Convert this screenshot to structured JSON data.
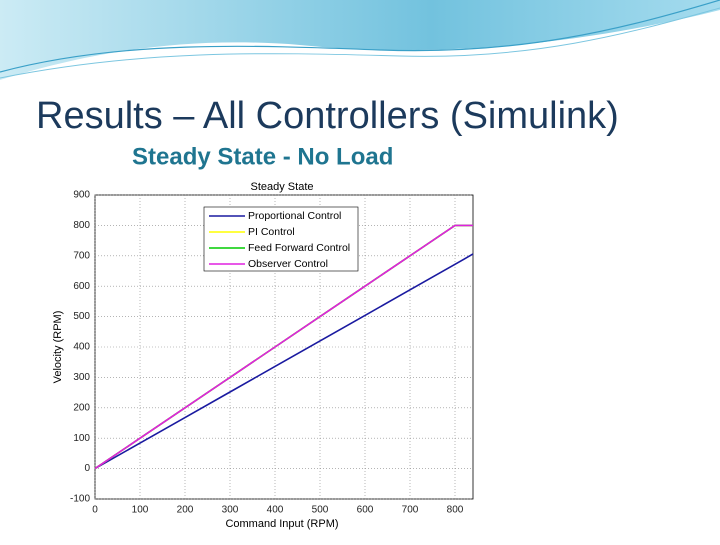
{
  "slide_title": "Results – All Controllers (Simulink)",
  "slide_subtitle": "Steady State - No Load",
  "chart_data": {
    "type": "line",
    "title": "Steady State",
    "x_label": "Command Input (RPM)",
    "y_label": "Velocity (RPM)",
    "x": [
      0,
      100,
      200,
      300,
      400,
      500,
      600,
      700,
      800,
      820,
      840
    ],
    "series": [
      {
        "name": "Proportional Control",
        "color": "#1a1aa0",
        "values": [
          0,
          84,
          168,
          252,
          336,
          420,
          504,
          588,
          672,
          689,
          706
        ]
      },
      {
        "name": "PI Control",
        "color": "#ffff00",
        "values": [
          0,
          100,
          200,
          300,
          400,
          500,
          600,
          700,
          800,
          800,
          800
        ]
      },
      {
        "name": "Feed Forward Control",
        "color": "#00cc00",
        "values": [
          0,
          100,
          200,
          300,
          400,
          500,
          600,
          700,
          800,
          800,
          800
        ]
      },
      {
        "name": "Observer Control",
        "color": "#e020e0",
        "values": [
          0,
          100,
          200,
          300,
          400,
          500,
          600,
          700,
          800,
          800,
          800
        ]
      }
    ],
    "xlim": [
      0,
      840
    ],
    "ylim": [
      -100,
      900
    ],
    "xticks": [
      0,
      100,
      200,
      300,
      400,
      500,
      600,
      700,
      800
    ],
    "yticks": [
      -100,
      0,
      100,
      200,
      300,
      400,
      500,
      600,
      700,
      800,
      900
    ],
    "grid": true,
    "legend": "upper-left"
  }
}
